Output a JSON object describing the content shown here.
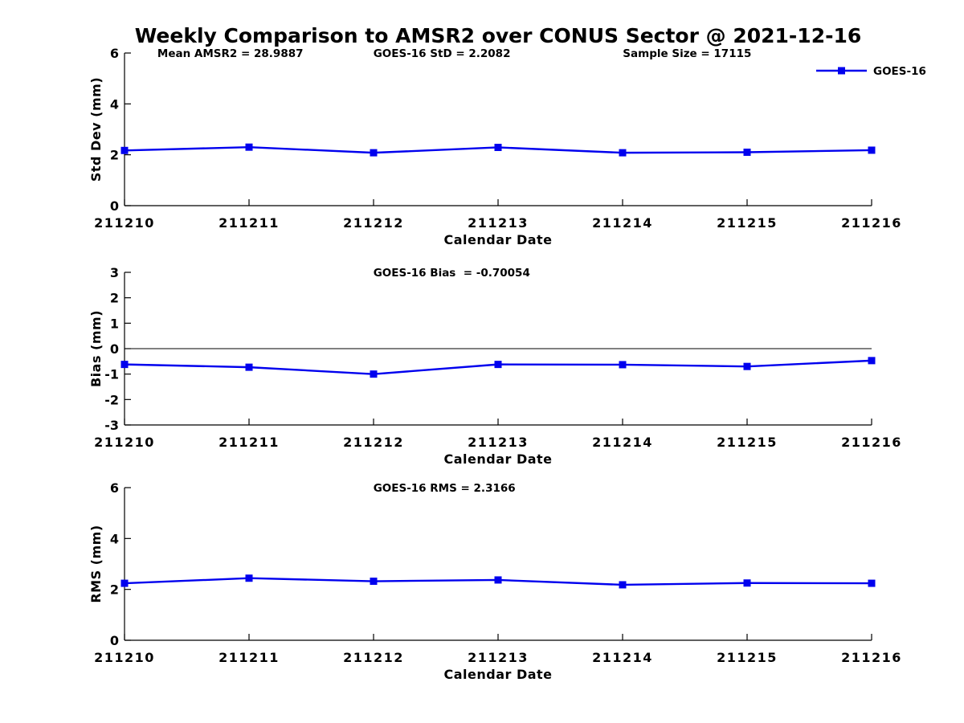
{
  "page_title": "Weekly Comparison to AMSR2 over CONUS Sector @ 2021-12-16",
  "colors": {
    "series_blue": "#0000EE",
    "axis_black": "#000000",
    "background": "#FFFFFF"
  },
  "legend": {
    "label": "GOES-16",
    "marker": "blue-square-marker-icon",
    "position": "top-right"
  },
  "chart_data": [
    {
      "id": "stddev",
      "type": "line",
      "categories": [
        "211210",
        "211211",
        "211212",
        "211213",
        "211214",
        "211215",
        "211216"
      ],
      "series": [
        {
          "name": "GOES-16",
          "values": [
            2.17,
            2.3,
            2.08,
            2.29,
            2.08,
            2.1,
            2.18
          ]
        }
      ],
      "annotations": [
        {
          "name": "mean-amsr2-annotation",
          "text": "Mean AMSR2 = 28.9887",
          "xfrac": 0.044
        },
        {
          "name": "goes16-std-annotation",
          "text": "GOES-16 StD = 2.2082",
          "xfrac": 0.333
        },
        {
          "name": "sample-size-annotation",
          "text": "Sample Size = 17115",
          "xfrac": 0.667
        }
      ],
      "xlabel": "Calendar Date",
      "ylabel": "Std Dev (mm)",
      "ylim": [
        0,
        6
      ],
      "yticks": [
        0,
        2,
        4,
        6
      ],
      "grid": false,
      "zero_line": false,
      "show_legend": true
    },
    {
      "id": "bias",
      "type": "line",
      "categories": [
        "211210",
        "211211",
        "211212",
        "211213",
        "211214",
        "211215",
        "211216"
      ],
      "series": [
        {
          "name": "GOES-16",
          "values": [
            -0.62,
            -0.73,
            -1.0,
            -0.62,
            -0.63,
            -0.7,
            -0.47
          ]
        }
      ],
      "annotations": [
        {
          "name": "goes16-bias-annotation",
          "text": "GOES-16 Bias  = -0.70054",
          "xfrac": 0.333
        }
      ],
      "xlabel": "Calendar Date",
      "ylabel": "Bias (mm)",
      "ylim": [
        -3,
        3
      ],
      "yticks": [
        -3,
        -2,
        -1,
        0,
        1,
        2,
        3
      ],
      "grid": false,
      "zero_line": true,
      "show_legend": false
    },
    {
      "id": "rms",
      "type": "line",
      "categories": [
        "211210",
        "211211",
        "211212",
        "211213",
        "211214",
        "211215",
        "211216"
      ],
      "series": [
        {
          "name": "GOES-16",
          "values": [
            2.24,
            2.44,
            2.32,
            2.37,
            2.18,
            2.25,
            2.24
          ]
        }
      ],
      "annotations": [
        {
          "name": "goes16-rms-annotation",
          "text": "GOES-16 RMS = 2.3166",
          "xfrac": 0.333
        }
      ],
      "xlabel": "Calendar Date",
      "ylabel": "RMS (mm)",
      "ylim": [
        0,
        6
      ],
      "yticks": [
        0,
        2,
        4,
        6
      ],
      "grid": false,
      "zero_line": false,
      "show_legend": false
    }
  ]
}
